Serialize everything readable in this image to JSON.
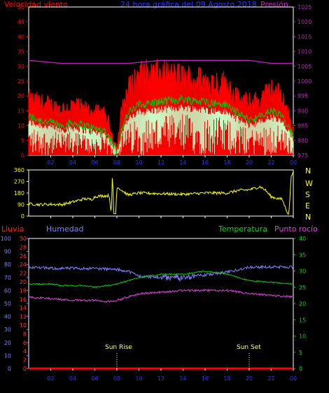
{
  "header": {
    "left_title": "Velocidad viento",
    "center_title": "24 hora gráfica del 09 Agosto 2018",
    "right_title": "Presión"
  },
  "colors": {
    "red": "#ff0000",
    "pressure": "#c020c0",
    "green": "#00cc00",
    "mint": "#c8ffc8",
    "yellow": "#ffff00",
    "blue": "#8080ff",
    "magenta": "#e040e0",
    "frame": "#ffffff"
  },
  "legend2": {
    "lluvia": "Lluvia",
    "humedad": "Humedad",
    "temperatura": "Temperatura",
    "punto_rocio": "Punto rocío"
  },
  "dir_labels": [
    "N",
    "W",
    "S",
    "E",
    "N"
  ],
  "annotations": {
    "sunrise": "Sun Rise",
    "sunset": "Sun Set",
    "sunrise_hour": 8,
    "sunset_hour": 20
  },
  "chart_data": [
    {
      "type": "line",
      "name": "wind-pressure",
      "x_ticks": [
        "02",
        "04",
        "06",
        "08",
        "10",
        "12",
        "14",
        "16",
        "18",
        "20",
        "22",
        "00"
      ],
      "y_left_ticks": [
        0,
        5,
        10,
        15,
        20,
        25,
        30,
        35,
        40,
        45,
        50
      ],
      "y_left_range": [
        0,
        50
      ],
      "y_right_ticks": [
        975,
        980,
        985,
        990,
        995,
        1000,
        1005,
        1010,
        1015,
        1020,
        1025
      ],
      "y_right_range": [
        975,
        1025
      ],
      "gust_profile": [
        [
          0,
          17
        ],
        [
          1,
          16
        ],
        [
          2,
          15
        ],
        [
          3,
          14
        ],
        [
          4,
          15
        ],
        [
          5,
          14
        ],
        [
          6,
          13
        ],
        [
          7,
          12
        ],
        [
          7.5,
          7
        ],
        [
          8,
          2
        ],
        [
          8.5,
          15
        ],
        [
          9,
          20
        ],
        [
          10,
          25
        ],
        [
          12,
          25
        ],
        [
          14,
          24
        ],
        [
          16,
          23
        ],
        [
          18,
          22
        ],
        [
          19,
          17
        ],
        [
          20,
          16
        ],
        [
          21,
          17
        ],
        [
          22,
          20
        ],
        [
          23,
          18
        ],
        [
          24,
          8
        ]
      ],
      "avg_profile": [
        [
          0,
          13
        ],
        [
          1,
          12
        ],
        [
          2,
          11
        ],
        [
          3,
          10
        ],
        [
          4,
          11
        ],
        [
          5,
          10
        ],
        [
          6,
          9
        ],
        [
          7,
          8
        ],
        [
          7.5,
          5
        ],
        [
          8,
          1
        ],
        [
          8.5,
          10
        ],
        [
          9,
          14
        ],
        [
          10,
          17
        ],
        [
          12,
          18
        ],
        [
          14,
          19
        ],
        [
          16,
          18
        ],
        [
          18,
          17
        ],
        [
          19,
          14
        ],
        [
          20,
          12
        ],
        [
          21,
          13
        ],
        [
          22,
          15
        ],
        [
          23,
          13
        ],
        [
          24,
          6
        ]
      ],
      "pressure": [
        [
          0,
          1007
        ],
        [
          3,
          1006
        ],
        [
          6,
          1006
        ],
        [
          9,
          1006
        ],
        [
          12,
          1007
        ],
        [
          15,
          1007
        ],
        [
          18,
          1007
        ],
        [
          20,
          1007
        ],
        [
          22,
          1006
        ],
        [
          24,
          1006
        ]
      ]
    },
    {
      "type": "line",
      "name": "wind-direction",
      "x_ticks": [
        "02",
        "04",
        "06",
        "08",
        "10",
        "12",
        "14",
        "16",
        "18",
        "20",
        "22",
        "00"
      ],
      "y_ticks": [
        0,
        90,
        180,
        270,
        360
      ],
      "y_range": [
        0,
        360
      ],
      "direction": [
        [
          0,
          95
        ],
        [
          1,
          90
        ],
        [
          2,
          92
        ],
        [
          3,
          90
        ],
        [
          4,
          110
        ],
        [
          5,
          135
        ],
        [
          5.7,
          130
        ],
        [
          6,
          150
        ],
        [
          6.2,
          155
        ],
        [
          7.3,
          160
        ],
        [
          7.5,
          20
        ],
        [
          7.6,
          360
        ],
        [
          7.7,
          20
        ],
        [
          7.9,
          20
        ],
        [
          8,
          230
        ],
        [
          9,
          165
        ],
        [
          10,
          180
        ],
        [
          12,
          175
        ],
        [
          14,
          170
        ],
        [
          16,
          180
        ],
        [
          18,
          180
        ],
        [
          19,
          200
        ],
        [
          20,
          205
        ],
        [
          21,
          230
        ],
        [
          21.5,
          200
        ],
        [
          22,
          150
        ],
        [
          23,
          130
        ],
        [
          23.3,
          60
        ],
        [
          23.6,
          10
        ],
        [
          23.8,
          300
        ],
        [
          24,
          360
        ]
      ]
    },
    {
      "type": "line",
      "name": "temp-humidity",
      "x_ticks": [
        "02",
        "04",
        "06",
        "08",
        "10",
        "12",
        "14",
        "16",
        "18",
        "20",
        "22",
        "00"
      ],
      "humidity_ticks": [
        0,
        10,
        20,
        30,
        40,
        50,
        60,
        70,
        80,
        90,
        100
      ],
      "rain_ticks": [
        0,
        2,
        4,
        6,
        8,
        10,
        12,
        14,
        16,
        18,
        20,
        22,
        24,
        26,
        28,
        30
      ],
      "temp_ticks": [
        0,
        5,
        10,
        15,
        20,
        25,
        30,
        35,
        40
      ],
      "humidity_range": [
        0,
        100
      ],
      "rain_range": [
        0,
        30
      ],
      "temp_range": [
        0,
        40
      ],
      "humidity": [
        [
          0,
          78
        ],
        [
          2,
          77
        ],
        [
          4,
          77
        ],
        [
          6,
          77
        ],
        [
          8,
          76
        ],
        [
          9,
          75
        ],
        [
          10,
          71
        ],
        [
          12,
          70
        ],
        [
          14,
          70
        ],
        [
          16,
          72
        ],
        [
          18,
          74
        ],
        [
          19,
          76
        ],
        [
          20,
          78
        ],
        [
          22,
          78
        ],
        [
          24,
          78
        ]
      ],
      "temperature": [
        [
          0,
          26
        ],
        [
          2,
          26
        ],
        [
          3,
          25.5
        ],
        [
          5,
          25.5
        ],
        [
          6,
          25
        ],
        [
          7,
          25.5
        ],
        [
          8,
          26
        ],
        [
          9,
          27
        ],
        [
          10,
          28
        ],
        [
          12,
          29
        ],
        [
          14,
          29
        ],
        [
          16,
          30
        ],
        [
          18,
          29
        ],
        [
          19,
          28
        ],
        [
          20,
          27
        ],
        [
          22,
          26.5
        ],
        [
          24,
          26
        ]
      ],
      "dew_point": [
        [
          0,
          22
        ],
        [
          2,
          21.5
        ],
        [
          4,
          21
        ],
        [
          6,
          21
        ],
        [
          7,
          20.5
        ],
        [
          8,
          21
        ],
        [
          9,
          22
        ],
        [
          10,
          23
        ],
        [
          12,
          23.5
        ],
        [
          14,
          24
        ],
        [
          16,
          24
        ],
        [
          18,
          24
        ],
        [
          20,
          23
        ],
        [
          22,
          22.5
        ],
        [
          24,
          22
        ]
      ],
      "rain": [
        [
          0,
          0
        ],
        [
          24,
          0
        ]
      ]
    }
  ]
}
